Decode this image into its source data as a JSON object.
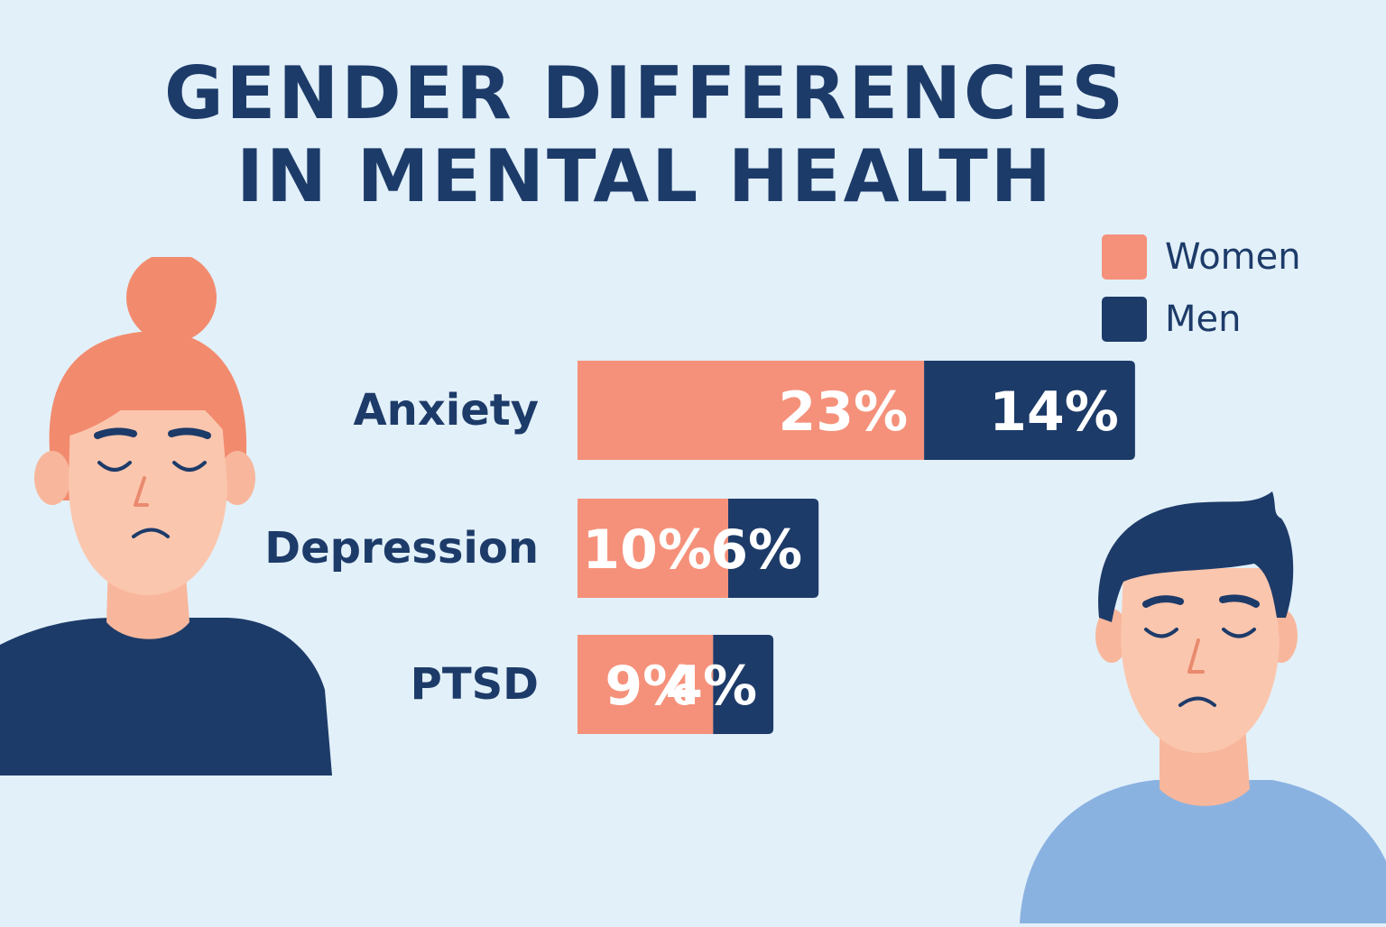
{
  "title_lines": [
    "GENDER DIFFERENCES",
    "IN MENTAL HEALTH"
  ],
  "colors": {
    "background": "#e2f0f9",
    "women": "#f5917a",
    "men": "#1d3b69",
    "text": "#1d3b69",
    "bar_label": "#ffffff"
  },
  "legend": [
    {
      "label": "Women",
      "color": "#f5917a"
    },
    {
      "label": "Men",
      "color": "#1d3b69"
    }
  ],
  "chart_data": {
    "type": "bar",
    "orientation": "horizontal",
    "stacked": true,
    "categories": [
      "Anxiety",
      "Depression",
      "PTSD"
    ],
    "series": [
      {
        "name": "Women",
        "values": [
          23,
          10,
          9
        ],
        "labels": [
          "23%",
          "10%",
          "9%"
        ],
        "color": "#f5917a"
      },
      {
        "name": "Men",
        "values": [
          14,
          6,
          4
        ],
        "labels": [
          "14%",
          "6%",
          "4%"
        ],
        "color": "#1d3b69"
      }
    ],
    "unit": "%",
    "legend_position": "top-right",
    "grid": false
  },
  "illustrations": {
    "left": "woman-sad-icon",
    "right": "man-sad-icon"
  }
}
